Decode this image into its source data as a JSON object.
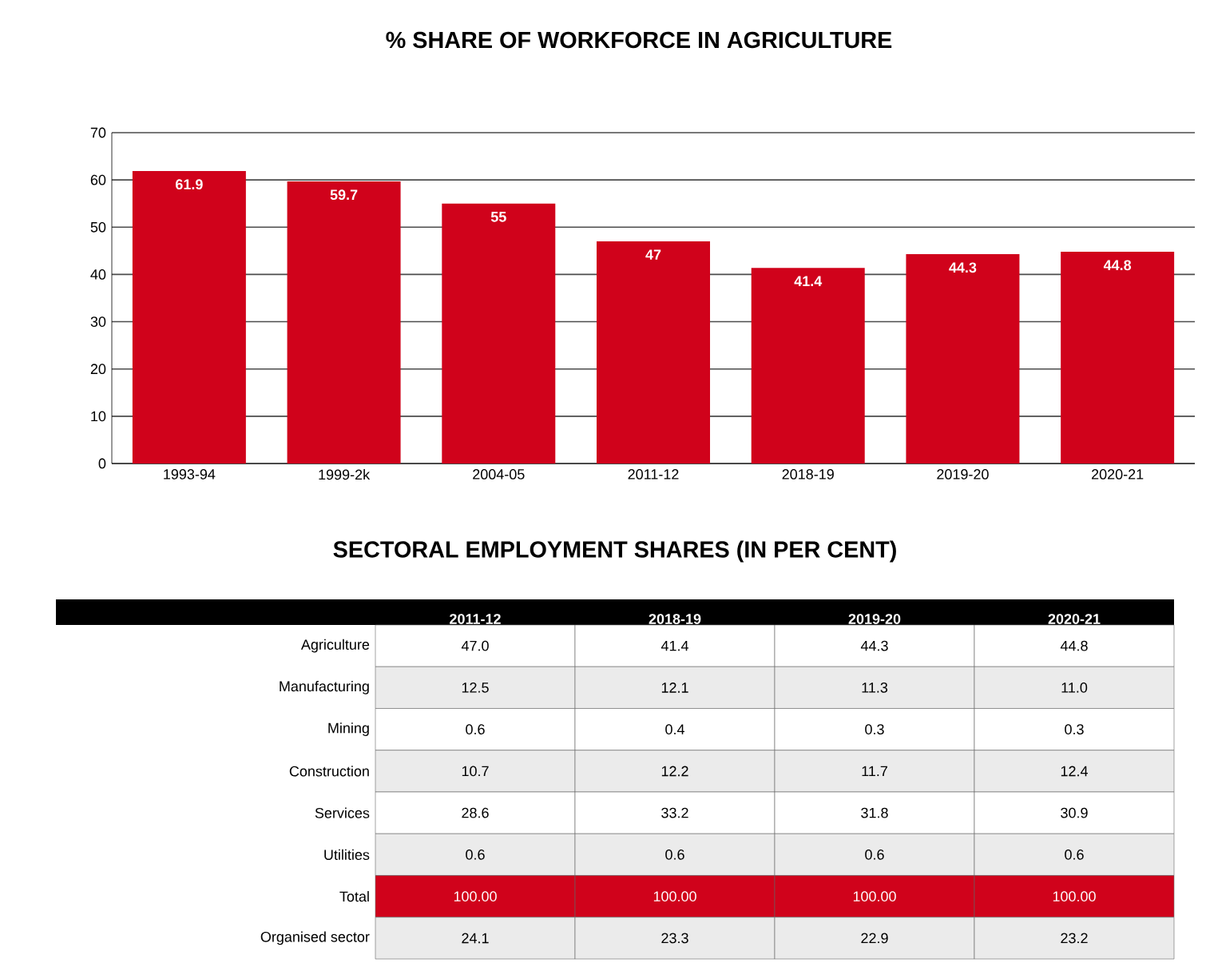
{
  "chart_data": [
    {
      "type": "bar",
      "title": "% SHARE OF WORKFORCE IN AGRICULTURE",
      "categories": [
        "1993-94",
        "1999-2k",
        "2004-05",
        "2011-12",
        "2018-19",
        "2019-20",
        "2020-21"
      ],
      "values": [
        61.9,
        59.7,
        55,
        47,
        41.4,
        44.3,
        44.8
      ],
      "color": "#d0021b",
      "ylim": [
        0,
        70
      ],
      "yticks": [
        0,
        10,
        20,
        30,
        40,
        50,
        60,
        70
      ],
      "grid": "y",
      "data_labels": true
    },
    {
      "type": "heatmap",
      "title": "SECTORAL EMPLOYMENT SHARES (IN PER CENT)",
      "categories": [
        "2011-12",
        "2018-19",
        "2019-20",
        "2020-21"
      ],
      "y_categories": [
        "Agriculture",
        "Manufacturing",
        "Mining",
        "Construction",
        "Services",
        "Utilities",
        "Total",
        "Organised sector"
      ],
      "cells": [
        [
          47.0,
          41.4,
          44.3,
          44.8
        ],
        [
          12.5,
          12.1,
          11.3,
          11.0
        ],
        [
          0.6,
          0.4,
          0.3,
          0.3
        ],
        [
          10.7,
          12.2,
          11.7,
          12.4
        ],
        [
          28.6,
          33.2,
          31.8,
          30.9
        ],
        [
          0.6,
          0.6,
          0.6,
          0.6
        ],
        [
          100.0,
          100.0,
          100.0,
          100.0
        ],
        [
          24.1,
          23.3,
          22.9,
          23.2
        ]
      ],
      "cell_labels": [
        [
          "47.0",
          "41.4",
          "44.3",
          "44.8"
        ],
        [
          "12.5",
          "12.1",
          "11.3",
          "11.0"
        ],
        [
          "0.6",
          "0.4",
          "0.3",
          "0.3"
        ],
        [
          "10.7",
          "12.2",
          "11.7",
          "12.4"
        ],
        [
          "28.6",
          "33.2",
          "31.8",
          "30.9"
        ],
        [
          "0.6",
          "0.6",
          "0.6",
          "0.6"
        ],
        [
          "100.00",
          "100.00",
          "100.00",
          "100.00"
        ],
        [
          "24.1",
          "23.3",
          "22.9",
          "23.2"
        ]
      ]
    }
  ]
}
